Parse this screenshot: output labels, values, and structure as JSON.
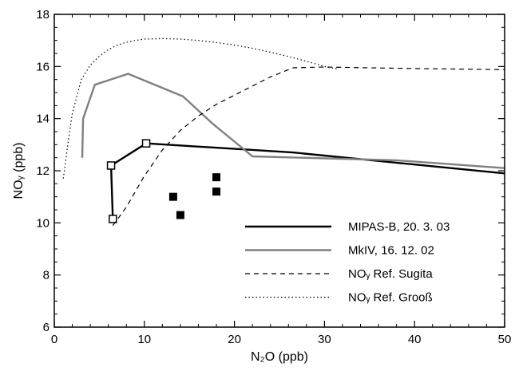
{
  "chart_data": {
    "type": "line",
    "xlabel": "N₂O (ppb)",
    "ylabel": "NOᵧ (ppb)",
    "xlim": [
      0,
      50
    ],
    "ylim": [
      6,
      18
    ],
    "x_ticks": [
      0,
      10,
      20,
      30,
      40,
      50
    ],
    "y_ticks": [
      6,
      8,
      10,
      12,
      14,
      16,
      18
    ],
    "x_tick_labels": [
      "0",
      "10",
      "20",
      "30",
      "40",
      "50"
    ],
    "y_tick_labels": [
      "6",
      "8",
      "10",
      "12",
      "14",
      "16",
      "18"
    ],
    "legend_position": "lower-right",
    "grid": false,
    "series": [
      {
        "name": "MIPAS-B, 20. 3. 03",
        "style": "solid",
        "color": "#000000",
        "width": 2.4,
        "marker": "open-square",
        "x": [
          6.5,
          6.3,
          10.2,
          26.5,
          50
        ],
        "y": [
          10.15,
          12.2,
          13.05,
          12.7,
          11.9
        ],
        "marker_indices": [
          0,
          1,
          2
        ]
      },
      {
        "name": "MkIV, 16. 12. 02",
        "style": "solid",
        "color": "#808080",
        "width": 2.4,
        "x": [
          3.1,
          3.2,
          4.5,
          8.2,
          14.3,
          17.6,
          22,
          38,
          50
        ],
        "y": [
          12.5,
          14,
          15.3,
          15.72,
          14.85,
          13.8,
          12.55,
          12.4,
          12.1
        ]
      },
      {
        "name": "NOᵧ Ref. Sugita",
        "style": "dashed",
        "color": "#000000",
        "width": 1.2,
        "x": [
          6.5,
          8,
          10,
          12,
          14,
          16,
          18,
          20,
          22,
          24,
          26.5,
          30,
          35,
          40,
          45,
          50
        ],
        "y": [
          9.9,
          10.6,
          11.8,
          12.8,
          13.55,
          14.1,
          14.55,
          14.9,
          15.25,
          15.6,
          15.95,
          15.98,
          15.95,
          15.92,
          15.9,
          15.88
        ]
      },
      {
        "name": "NOᵧ Ref. Grooß",
        "style": "dotted",
        "color": "#000000",
        "width": 1.2,
        "x": [
          1,
          1.5,
          2,
          3,
          4,
          5,
          6,
          7,
          8,
          9,
          10,
          12,
          14,
          16,
          18,
          20,
          22,
          24,
          26,
          28,
          30,
          31.5
        ],
        "y": [
          11.7,
          13,
          14.2,
          15.5,
          16.05,
          16.4,
          16.65,
          16.82,
          16.93,
          17,
          17.05,
          17.07,
          17.05,
          17,
          16.92,
          16.82,
          16.7,
          16.55,
          16.38,
          16.2,
          16,
          15.9
        ]
      },
      {
        "name": "",
        "type": "scatter",
        "marker": "filled-square",
        "color": "#000000",
        "x": [
          13.2,
          14,
          18,
          18
        ],
        "y": [
          11,
          10.3,
          11.75,
          11.2
        ]
      }
    ]
  }
}
